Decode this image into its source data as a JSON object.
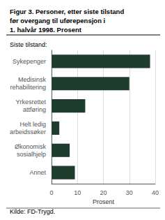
{
  "chart_data": {
    "type": "bar",
    "title": "Figur 3. Personer, etter siste tilstand\nfør overgang til uførepensjon i\n1. halvår 1998. Prosent",
    "subtitle": "Siste tilstand:",
    "annotations": [
      "Kilde: FD-Trygd."
    ],
    "categories": [
      "Sykepenger",
      "Medisinsk\nrehabilitering",
      "Yrkesrettet\nattføring",
      "Helt ledig\narbeidssøker",
      "Økonomisk\nsosialhjelp",
      "Annet"
    ],
    "values": [
      38,
      30,
      13,
      3,
      7,
      9
    ],
    "color": "#1e3d2f",
    "orientation": "horizontal",
    "xlabel": "Prosent",
    "xlim": [
      0,
      40
    ],
    "xticks": [
      0,
      10,
      20,
      30,
      40
    ],
    "grid": true
  }
}
